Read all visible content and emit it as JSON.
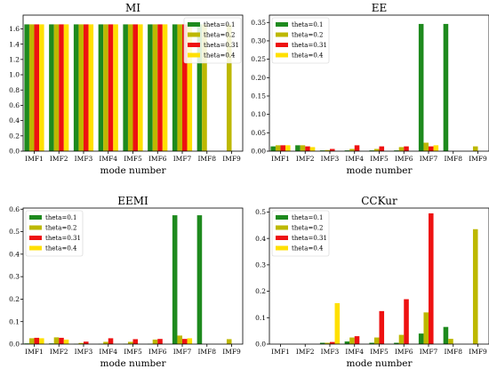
{
  "chart_data": [
    {
      "type": "bar",
      "title": "MI",
      "xlabel": "mode number",
      "ylabel": "",
      "categories": [
        "IMF1",
        "IMF2",
        "IMF3",
        "IMF4",
        "IMF5",
        "IMF6",
        "IMF7",
        "IMF8",
        "IMF9"
      ],
      "ylim": [
        0,
        1.78
      ],
      "yticks": [
        0.0,
        0.2,
        0.4,
        0.6,
        0.8,
        1.0,
        1.2,
        1.4,
        1.6
      ],
      "yticklabels": [
        "0.0",
        "0.2",
        "0.4",
        "0.6",
        "0.8",
        "1.0",
        "1.2",
        "1.4",
        "1.6"
      ],
      "legend_position": "top-right",
      "series": [
        {
          "name": "theta=0.1",
          "color": "#1e8a1e",
          "values": [
            1.659,
            1.659,
            1.659,
            1.659,
            1.659,
            1.659,
            1.659,
            1.659,
            0
          ]
        },
        {
          "name": "theta=0.2",
          "color": "#bdb800",
          "values": [
            1.659,
            1.659,
            1.659,
            1.659,
            1.659,
            1.659,
            1.659,
            1.659,
            1.659
          ]
        },
        {
          "name": "theta=0.31",
          "color": "#ee1111",
          "values": [
            1.659,
            1.659,
            1.659,
            1.659,
            1.659,
            1.659,
            1.659,
            0,
            0
          ]
        },
        {
          "name": "theta=0.4",
          "color": "#ffe000",
          "values": [
            1.659,
            1.659,
            1.659,
            1.659,
            1.659,
            1.659,
            1.659,
            0,
            0
          ]
        }
      ]
    },
    {
      "type": "bar",
      "title": "EE",
      "xlabel": "mode number",
      "ylabel": "",
      "categories": [
        "IMF1",
        "IMF2",
        "IMF3",
        "IMF4",
        "IMF5",
        "IMF6",
        "IMF7",
        "IMF8",
        "IMF9"
      ],
      "ylim": [
        0,
        0.37
      ],
      "yticks": [
        0.0,
        0.05,
        0.1,
        0.15,
        0.2,
        0.25,
        0.3,
        0.35
      ],
      "yticklabels": [
        "0.00",
        "0.05",
        "0.10",
        "0.15",
        "0.20",
        "0.25",
        "0.30",
        "0.35"
      ],
      "legend_position": "top-left",
      "series": [
        {
          "name": "theta=0.1",
          "color": "#1e8a1e",
          "values": [
            0.013,
            0.016,
            0.002,
            0.002,
            0.002,
            0.002,
            0.346,
            0.346,
            0
          ]
        },
        {
          "name": "theta=0.2",
          "color": "#bdb800",
          "values": [
            0.016,
            0.016,
            0.003,
            0.006,
            0.006,
            0.011,
            0.023,
            0,
            0.013
          ]
        },
        {
          "name": "theta=0.31",
          "color": "#ee1111",
          "values": [
            0.016,
            0.013,
            0.006,
            0.016,
            0.013,
            0.013,
            0.013,
            0,
            0
          ]
        },
        {
          "name": "theta=0.4",
          "color": "#ffe000",
          "values": [
            0.016,
            0.011,
            0,
            0,
            0,
            0,
            0.016,
            0,
            0
          ]
        }
      ]
    },
    {
      "type": "bar",
      "title": "EEMI",
      "xlabel": "mode number",
      "ylabel": "",
      "categories": [
        "IMF1",
        "IMF2",
        "IMF3",
        "IMF4",
        "IMF5",
        "IMF6",
        "IMF7",
        "IMF8",
        "IMF9"
      ],
      "ylim": [
        0,
        0.605
      ],
      "yticks": [
        0.0,
        0.1,
        0.2,
        0.3,
        0.4,
        0.5,
        0.6
      ],
      "yticklabels": [
        "0.0",
        "0.1",
        "0.2",
        "0.3",
        "0.4",
        "0.5",
        "0.6"
      ],
      "legend_position": "top-left",
      "series": [
        {
          "name": "theta=0.1",
          "color": "#1e8a1e",
          "values": [
            0.003,
            0.003,
            0.001,
            0.001,
            0.001,
            0.001,
            0.573,
            0.573,
            0
          ]
        },
        {
          "name": "theta=0.2",
          "color": "#bdb800",
          "values": [
            0.026,
            0.03,
            0.005,
            0.01,
            0.01,
            0.02,
            0.038,
            0,
            0.022
          ]
        },
        {
          "name": "theta=0.31",
          "color": "#ee1111",
          "values": [
            0.028,
            0.028,
            0.011,
            0.026,
            0.022,
            0.023,
            0.023,
            0,
            0
          ]
        },
        {
          "name": "theta=0.4",
          "color": "#ffe000",
          "values": [
            0.026,
            0.02,
            0,
            0,
            0,
            0,
            0.026,
            0,
            0
          ]
        }
      ]
    },
    {
      "type": "bar",
      "title": "CCKur",
      "xlabel": "mode number",
      "ylabel": "",
      "categories": [
        "IMF1",
        "IMF2",
        "IMF3",
        "IMF4",
        "IMF5",
        "IMF6",
        "IMF7",
        "IMF8",
        "IMF9"
      ],
      "ylim": [
        0,
        0.515
      ],
      "yticks": [
        0.0,
        0.1,
        0.2,
        0.3,
        0.4,
        0.5
      ],
      "yticklabels": [
        "0.0",
        "0.1",
        "0.2",
        "0.3",
        "0.4",
        "0.5"
      ],
      "legend_position": "top-left",
      "series": [
        {
          "name": "theta=0.1",
          "color": "#1e8a1e",
          "values": [
            0,
            0,
            0.005,
            0.01,
            0.005,
            0.005,
            0.04,
            0.065,
            0
          ]
        },
        {
          "name": "theta=0.2",
          "color": "#bdb800",
          "values": [
            0,
            0,
            0.005,
            0.025,
            0.025,
            0.035,
            0.12,
            0.02,
            0.435
          ]
        },
        {
          "name": "theta=0.31",
          "color": "#ee1111",
          "values": [
            0,
            0,
            0.008,
            0.03,
            0.125,
            0.17,
            0.495,
            0,
            0
          ]
        },
        {
          "name": "theta=0.4",
          "color": "#ffe000",
          "values": [
            0,
            0,
            0.155,
            0,
            0,
            0,
            0,
            0,
            0
          ]
        }
      ]
    }
  ]
}
